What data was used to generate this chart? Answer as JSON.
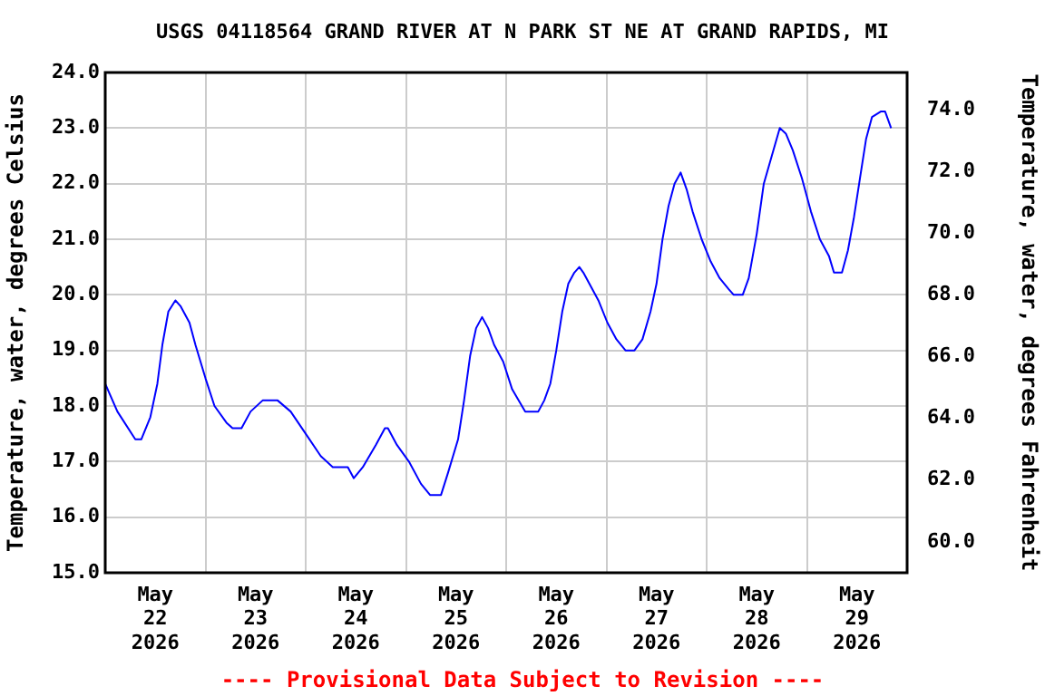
{
  "chart_data": {
    "type": "line",
    "title": "USGS 04118564 GRAND RIVER AT N PARK ST NE AT GRAND RAPIDS, MI",
    "ylabel": "Temperature, water, degrees Celsius",
    "y2label": "Temperature, water, degrees Fahrenheit",
    "annotations": [
      "---- Provisional Data Subject to Revision ----"
    ],
    "x": [
      "2026-05-22T00:00",
      "2026-05-22T02:55",
      "2026-05-22T07:12",
      "2026-05-22T08:38",
      "2026-05-22T10:48",
      "2026-05-22T12:29",
      "2026-05-22T13:41",
      "2026-05-22T15:07",
      "2026-05-22T16:48",
      "2026-05-22T18:00",
      "2026-05-22T20:10",
      "2026-05-22T21:36",
      "2026-05-23T00:00",
      "2026-05-23T02:10",
      "2026-05-23T05:02",
      "2026-05-23T06:29",
      "2026-05-23T08:38",
      "2026-05-23T10:48",
      "2026-05-23T13:41",
      "2026-05-23T17:17",
      "2026-05-23T20:24",
      "2026-05-24T00:00",
      "2026-05-24T03:36",
      "2026-05-24T06:29",
      "2026-05-24T10:05",
      "2026-05-24T11:31",
      "2026-05-24T13:41",
      "2026-05-24T16:48",
      "2026-05-24T18:58",
      "2026-05-24T19:41",
      "2026-05-24T21:50",
      "2026-05-25T00:43",
      "2026-05-25T03:36",
      "2026-05-25T05:46",
      "2026-05-25T08:24",
      "2026-05-25T10:05",
      "2026-05-25T12:29",
      "2026-05-25T13:55",
      "2026-05-25T15:22",
      "2026-05-25T16:48",
      "2026-05-25T18:14",
      "2026-05-25T19:41",
      "2026-05-25T21:07",
      "2026-05-25T23:17",
      "2026-05-26T01:26",
      "2026-05-26T04:34",
      "2026-05-26T07:41",
      "2026-05-26T09:07",
      "2026-05-26T10:34",
      "2026-05-26T12:00",
      "2026-05-26T13:26",
      "2026-05-26T14:53",
      "2026-05-26T16:19",
      "2026-05-26T17:31",
      "2026-05-26T18:29",
      "2026-05-26T19:55",
      "2026-05-26T22:05",
      "2026-05-27T00:14",
      "2026-05-27T02:24",
      "2026-05-27T04:34",
      "2026-05-27T06:43",
      "2026-05-27T08:38",
      "2026-05-27T10:34",
      "2026-05-27T12:00",
      "2026-05-27T13:26",
      "2026-05-27T14:53",
      "2026-05-27T16:19",
      "2026-05-27T17:46",
      "2026-05-27T19:12",
      "2026-05-27T20:38",
      "2026-05-27T22:48",
      "2026-05-28T00:58",
      "2026-05-28T03:07",
      "2026-05-28T05:17",
      "2026-05-28T06:29",
      "2026-05-28T08:38",
      "2026-05-28T10:05",
      "2026-05-28T12:00",
      "2026-05-28T13:41",
      "2026-05-28T15:36",
      "2026-05-28T17:31",
      "2026-05-28T18:58",
      "2026-05-28T20:38",
      "2026-05-28T22:48",
      "2026-05-29T00:58",
      "2026-05-29T03:07",
      "2026-05-29T05:17",
      "2026-05-29T06:29",
      "2026-05-29T08:24",
      "2026-05-29T09:50",
      "2026-05-29T11:17",
      "2026-05-29T12:43",
      "2026-05-29T14:10",
      "2026-05-29T15:36",
      "2026-05-29T17:46",
      "2026-05-29T18:43",
      "2026-05-29T20:10"
    ],
    "series": [
      {
        "color": "#0000ff",
        "values": [
          18.4,
          17.9,
          17.4,
          17.4,
          17.8,
          18.4,
          19.1,
          19.7,
          19.9,
          19.8,
          19.5,
          19.1,
          18.5,
          18.0,
          17.7,
          17.6,
          17.6,
          17.9,
          18.1,
          18.1,
          17.9,
          17.5,
          17.1,
          16.9,
          16.9,
          16.7,
          16.9,
          17.3,
          17.6,
          17.6,
          17.3,
          17.0,
          16.6,
          16.4,
          16.4,
          16.8,
          17.4,
          18.1,
          18.9,
          19.4,
          19.6,
          19.4,
          19.1,
          18.8,
          18.3,
          17.9,
          17.9,
          18.1,
          18.4,
          19.0,
          19.7,
          20.2,
          20.4,
          20.5,
          20.4,
          20.2,
          19.9,
          19.5,
          19.2,
          19.0,
          19.0,
          19.2,
          19.7,
          20.2,
          21.0,
          21.6,
          22.0,
          22.2,
          21.9,
          21.5,
          21.0,
          20.6,
          20.3,
          20.1,
          20.0,
          20.0,
          20.3,
          21.1,
          22.0,
          22.5,
          23.0,
          22.9,
          22.6,
          22.1,
          21.5,
          21.0,
          20.7,
          20.4,
          20.4,
          20.8,
          21.4,
          22.1,
          22.8,
          23.2,
          23.3,
          23.3,
          23.0
        ]
      }
    ],
    "xlim": [
      "2026-05-22T00:00",
      "2026-05-30T00:00"
    ],
    "xticks": [
      {
        "value": "2026-05-22T12:00",
        "label": "May\n22\n2026"
      },
      {
        "value": "2026-05-23T00:00",
        "label": null
      },
      {
        "value": "2026-05-23T12:00",
        "label": "May\n23\n2026"
      },
      {
        "value": "2026-05-24T00:00",
        "label": null
      },
      {
        "value": "2026-05-24T12:00",
        "label": "May\n24\n2026"
      },
      {
        "value": "2026-05-25T00:00",
        "label": null
      },
      {
        "value": "2026-05-25T12:00",
        "label": "May\n25\n2026"
      },
      {
        "value": "2026-05-26T00:00",
        "label": null
      },
      {
        "value": "2026-05-26T12:00",
        "label": "May\n26\n2026"
      },
      {
        "value": "2026-05-27T00:00",
        "label": null
      },
      {
        "value": "2026-05-27T12:00",
        "label": "May\n27\n2026"
      },
      {
        "value": "2026-05-28T00:00",
        "label": null
      },
      {
        "value": "2026-05-28T12:00",
        "label": "May\n28\n2026"
      },
      {
        "value": "2026-05-29T00:00",
        "label": null
      },
      {
        "value": "2026-05-29T12:00",
        "label": "May\n29\n2026"
      }
    ],
    "ylim": [
      15,
      24
    ],
    "yticks": [
      {
        "value": 15,
        "label": "15.0"
      },
      {
        "value": 16,
        "label": "16.0"
      },
      {
        "value": 17,
        "label": "17.0"
      },
      {
        "value": 18,
        "label": "18.0"
      },
      {
        "value": 19,
        "label": "19.0"
      },
      {
        "value": 20,
        "label": "20.0"
      },
      {
        "value": 21,
        "label": "21.0"
      },
      {
        "value": 22,
        "label": "22.0"
      },
      {
        "value": 23,
        "label": "23.0"
      },
      {
        "value": 24,
        "label": "24.0"
      }
    ],
    "y2lim": [
      59,
      75.2
    ],
    "y2ticks": [
      {
        "value": 60,
        "label": "60.0"
      },
      {
        "value": 62,
        "label": "62.0"
      },
      {
        "value": 64,
        "label": "64.0"
      },
      {
        "value": 66,
        "label": "66.0"
      },
      {
        "value": 68,
        "label": "68.0"
      },
      {
        "value": 70,
        "label": "70.0"
      },
      {
        "value": 72,
        "label": "72.0"
      },
      {
        "value": 74,
        "label": "74.0"
      }
    ],
    "grid": true,
    "legend": false,
    "marker": "none",
    "line_style": "solid"
  }
}
